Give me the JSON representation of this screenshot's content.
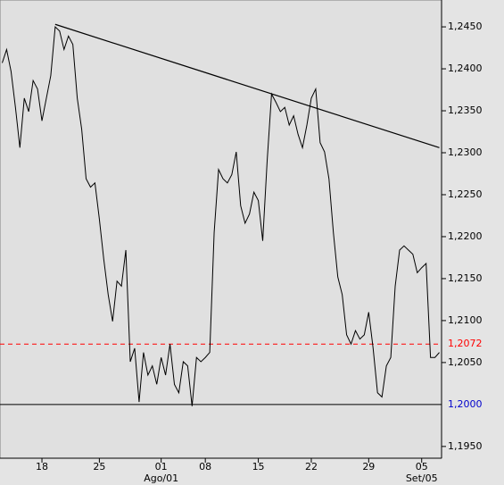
{
  "chart_data": {
    "type": "line",
    "categories": [
      null,
      null,
      null,
      null,
      null,
      null,
      null,
      null,
      null,
      "18",
      null,
      null,
      null,
      null,
      null,
      null,
      null,
      null,
      null,
      null,
      null,
      null,
      "25",
      null,
      null,
      null,
      null,
      null,
      null,
      null,
      null,
      null,
      null,
      null,
      null,
      null,
      "01",
      null,
      null,
      null,
      null,
      null,
      null,
      null,
      null,
      null,
      "08",
      null,
      null,
      null,
      null,
      null,
      null,
      null,
      null,
      null,
      null,
      null,
      "15",
      null,
      null,
      null,
      null,
      null,
      null,
      null,
      null,
      null,
      null,
      null,
      "22",
      null,
      null,
      null,
      null,
      null,
      null,
      null,
      null,
      null,
      null,
      null,
      null,
      "29",
      null,
      null,
      null,
      null,
      null,
      null,
      null,
      null,
      null,
      null,
      null,
      "05",
      null,
      null,
      null,
      null
    ],
    "month_labels": [
      null,
      null,
      null,
      null,
      null,
      null,
      null,
      null,
      null,
      null,
      null,
      null,
      null,
      null,
      null,
      null,
      null,
      null,
      null,
      null,
      null,
      null,
      null,
      null,
      null,
      null,
      null,
      null,
      null,
      null,
      null,
      null,
      null,
      null,
      null,
      null,
      "Ago/01",
      null,
      null,
      null,
      null,
      null,
      null,
      null,
      null,
      null,
      null,
      null,
      null,
      null,
      null,
      null,
      null,
      null,
      null,
      null,
      null,
      null,
      null,
      null,
      null,
      null,
      null,
      null,
      null,
      null,
      null,
      null,
      null,
      null,
      null,
      null,
      null,
      null,
      null,
      null,
      null,
      null,
      null,
      null,
      null,
      null,
      null,
      null,
      null,
      null,
      null,
      null,
      null,
      null,
      null,
      null,
      null,
      null,
      null,
      "Set/05",
      null,
      null,
      null,
      null
    ],
    "series": [
      {
        "color": "#000000",
        "values": [
          1.2407,
          1.2423,
          1.2397,
          1.2354,
          1.2306,
          1.2365,
          1.2349,
          1.2386,
          1.2376,
          1.2338,
          1.2365,
          1.2392,
          1.245,
          1.2445,
          1.2423,
          1.2439,
          1.2429,
          1.2365,
          1.2328,
          1.2269,
          1.2259,
          1.2264,
          1.2221,
          1.2173,
          1.2131,
          1.2099,
          1.2147,
          1.2141,
          1.2184,
          1.2051,
          1.2067,
          1.2003,
          1.2062,
          1.2035,
          1.2046,
          1.2024,
          1.2056,
          1.2035,
          1.2072,
          1.2024,
          1.2014,
          1.2051,
          1.2046,
          1.1998,
          1.2056,
          1.2051,
          1.2056,
          1.2062,
          1.2205,
          1.228,
          1.2269,
          1.2264,
          1.2274,
          1.2301,
          1.2237,
          1.2216,
          1.2227,
          1.2253,
          1.2243,
          1.2195,
          1.229,
          1.237,
          1.236,
          1.2349,
          1.2354,
          1.2333,
          1.2344,
          1.2322,
          1.2306,
          1.2333,
          1.2365,
          1.2376,
          1.2312,
          1.2301,
          1.2269,
          1.2205,
          1.2152,
          1.2131,
          1.2083,
          1.2072,
          1.2088,
          1.2078,
          1.2083,
          1.211,
          1.2067,
          1.2014,
          1.2009,
          1.2046,
          1.2056,
          1.2141,
          1.2184,
          1.2189,
          1.2184,
          1.2179,
          1.2157,
          1.2163,
          1.2168,
          1.2056,
          1.2056,
          1.2062
        ]
      }
    ],
    "trendline": {
      "color": "#000000",
      "from": {
        "x": 12,
        "y": 1.2453
      },
      "to": {
        "x": 99,
        "y": 1.2306
      }
    },
    "reference_lines": [
      {
        "value": 1.2,
        "label": "1,2000",
        "label_color": "#0000cc",
        "line_color": "#000000",
        "dashed": false
      },
      {
        "value": 1.2072,
        "label": "1,2072",
        "label_color": "#ff0000",
        "line_color": "#ff0000",
        "dashed": true
      }
    ],
    "ylim": [
      1.1936,
      1.2482
    ],
    "yticks": [
      {
        "value": 1.245,
        "label": "1,2450"
      },
      {
        "value": 1.24,
        "label": "1,2400"
      },
      {
        "value": 1.235,
        "label": "1,2350"
      },
      {
        "value": 1.23,
        "label": "1,2300"
      },
      {
        "value": 1.225,
        "label": "1,2250"
      },
      {
        "value": 1.22,
        "label": "1,2200"
      },
      {
        "value": 1.215,
        "label": "1,2150"
      },
      {
        "value": 1.21,
        "label": "1,2100"
      },
      {
        "value": 1.205,
        "label": "1,2050"
      },
      {
        "value": 1.195,
        "label": "1,1950"
      }
    ]
  }
}
